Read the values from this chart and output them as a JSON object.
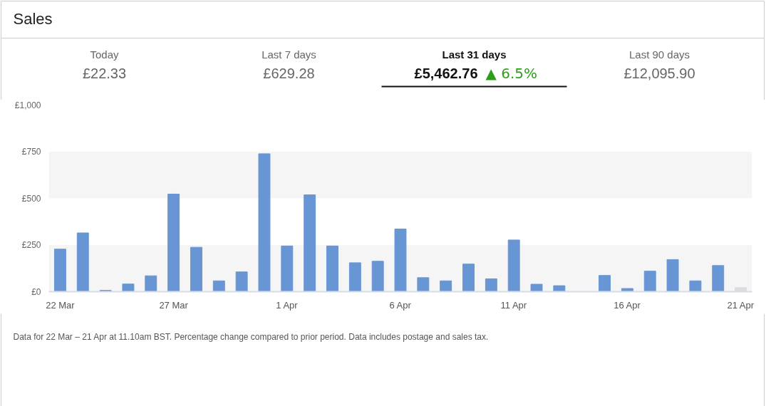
{
  "chart_data": {
    "type": "bar",
    "title": "Sales",
    "categories": [
      "22 Mar",
      null,
      null,
      null,
      null,
      "27 Mar",
      null,
      null,
      null,
      null,
      "1 Apr",
      null,
      null,
      null,
      null,
      "6 Apr",
      null,
      null,
      null,
      null,
      "11 Apr",
      null,
      null,
      null,
      null,
      "16 Apr",
      null,
      null,
      null,
      null,
      "21 Apr"
    ],
    "values": [
      228,
      315,
      7,
      41,
      85,
      523,
      238,
      58,
      106,
      739,
      245,
      519,
      245,
      155,
      163,
      336,
      75,
      58,
      148,
      69,
      277,
      40,
      32,
      0,
      87,
      17,
      110,
      172,
      58,
      140,
      22
    ],
    "colors": [
      "#6896d4",
      "#6896d4",
      "#6896d4",
      "#6896d4",
      "#6896d4",
      "#6896d4",
      "#6896d4",
      "#6896d4",
      "#6896d4",
      "#6896d4",
      "#6896d4",
      "#6896d4",
      "#6896d4",
      "#6896d4",
      "#6896d4",
      "#6896d4",
      "#6896d4",
      "#6896d4",
      "#6896d4",
      "#6896d4",
      "#6896d4",
      "#6896d4",
      "#6896d4",
      "#6896d4",
      "#6896d4",
      "#6896d4",
      "#6896d4",
      "#6896d4",
      "#6896d4",
      "#6896d4",
      "#dcdcdc"
    ],
    "ylim": [
      0,
      1000
    ],
    "yticks": [
      {
        "value": 0,
        "label": "£0"
      },
      {
        "value": 250,
        "label": "£250"
      },
      {
        "value": 500,
        "label": "£500"
      },
      {
        "value": 750,
        "label": "£750"
      },
      {
        "value": 1000,
        "label": "£1,000"
      }
    ],
    "bands": [
      {
        "axis": "y",
        "from": 0,
        "to": 250,
        "color": "#f5f5f5"
      },
      {
        "axis": "y",
        "from": 500,
        "to": 750,
        "color": "#f5f5f5"
      }
    ],
    "grid": false,
    "annotations": [
      "Today",
      "£22.33",
      "Last 7 days",
      "£629.28",
      "Last 31 days",
      "£5,462.76",
      "▲ 6.5%",
      "Last 90 days",
      "£12,095.90",
      "Data for 22 Mar – 21 Apr at 11.10am BST. Percentage change compared to prior period. Data includes postage and sales tax."
    ]
  }
}
